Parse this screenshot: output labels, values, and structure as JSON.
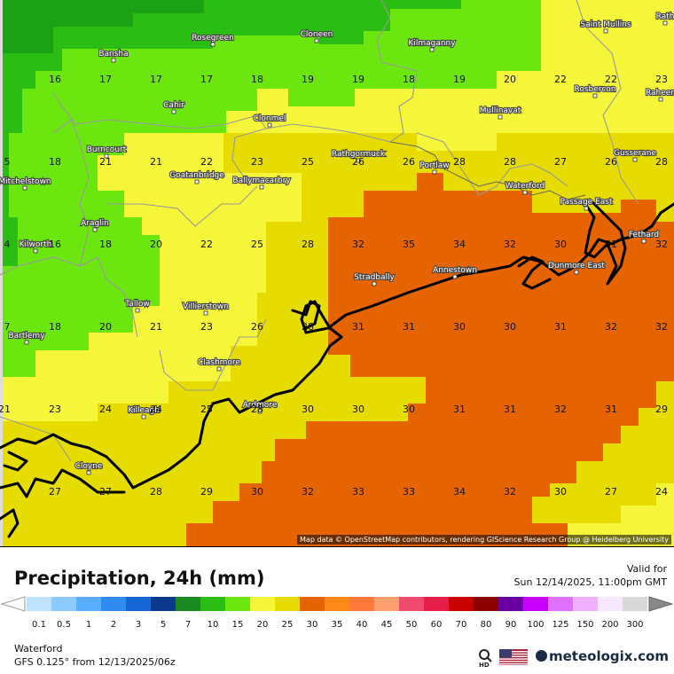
{
  "map": {
    "attribution": "Map data © OpenStreetMap contributors, rendering GIScience Research Group @ Heidelberg University",
    "places": [
      {
        "name": "Rosegreen",
        "id": "rosegreen"
      },
      {
        "name": "Cloneen",
        "id": "cloneen"
      },
      {
        "name": "Kilmaganny",
        "id": "kilmaganny"
      },
      {
        "name": "Saint Mullins",
        "id": "saint-mullins"
      },
      {
        "name": "Rath",
        "id": "rath"
      },
      {
        "name": "Bansha",
        "id": "bansha"
      },
      {
        "name": "Rosbercon",
        "id": "rosbercon"
      },
      {
        "name": "Raheen",
        "id": "raheen"
      },
      {
        "name": "Cahir",
        "id": "cahir"
      },
      {
        "name": "Mullinavat",
        "id": "mullinavat"
      },
      {
        "name": "Clonmel",
        "id": "clonmel"
      },
      {
        "name": "Burncourt",
        "id": "burncourt"
      },
      {
        "name": "Rathgormuck",
        "id": "rathgormuck"
      },
      {
        "name": "Gusserane",
        "id": "gusserane"
      },
      {
        "name": "Portlaw",
        "id": "portlaw"
      },
      {
        "name": "Goatanbridge",
        "id": "goatanbridge"
      },
      {
        "name": "Ballymacarbry",
        "id": "ballymacarbry"
      },
      {
        "name": "Mitchelstown",
        "id": "mitchelstown"
      },
      {
        "name": "Waterford",
        "id": "waterford"
      },
      {
        "name": "Passage East",
        "id": "passage-east"
      },
      {
        "name": "Araglin",
        "id": "araglin"
      },
      {
        "name": "Fethard",
        "id": "fethard"
      },
      {
        "name": "Kilworth",
        "id": "kilworth"
      },
      {
        "name": "Dunmore East",
        "id": "dunmore-east"
      },
      {
        "name": "Annestown",
        "id": "annestown"
      },
      {
        "name": "Stradbally",
        "id": "stradbally"
      },
      {
        "name": "Tallow",
        "id": "tallow"
      },
      {
        "name": "Villierstown",
        "id": "villierstown"
      },
      {
        "name": "Bartlemy",
        "id": "bartlemy"
      },
      {
        "name": "Clashmore",
        "id": "clashmore"
      },
      {
        "name": "Ardmore",
        "id": "ardmore"
      },
      {
        "name": "Killeagh",
        "id": "killeagh"
      },
      {
        "name": "Cloyne",
        "id": "cloyne"
      }
    ],
    "values": [
      {
        "v": "16"
      },
      {
        "v": "17"
      },
      {
        "v": "17"
      },
      {
        "v": "17"
      },
      {
        "v": "18"
      },
      {
        "v": "19"
      },
      {
        "v": "19"
      },
      {
        "v": "18"
      },
      {
        "v": "19"
      },
      {
        "v": "20"
      },
      {
        "v": "22"
      },
      {
        "v": "22"
      },
      {
        "v": "23"
      },
      {
        "v": "5"
      },
      {
        "v": "18"
      },
      {
        "v": "21"
      },
      {
        "v": "21"
      },
      {
        "v": "22"
      },
      {
        "v": "23"
      },
      {
        "v": "25"
      },
      {
        "v": "26"
      },
      {
        "v": "26"
      },
      {
        "v": "28"
      },
      {
        "v": "28"
      },
      {
        "v": "27"
      },
      {
        "v": "26"
      },
      {
        "v": "28"
      },
      {
        "v": "4"
      },
      {
        "v": "16"
      },
      {
        "v": "18"
      },
      {
        "v": "20"
      },
      {
        "v": "22"
      },
      {
        "v": "25"
      },
      {
        "v": "28"
      },
      {
        "v": "32"
      },
      {
        "v": "35"
      },
      {
        "v": "34"
      },
      {
        "v": "32"
      },
      {
        "v": "30"
      },
      {
        "v": "31"
      },
      {
        "v": "32"
      },
      {
        "v": "7"
      },
      {
        "v": "18"
      },
      {
        "v": "20"
      },
      {
        "v": "21"
      },
      {
        "v": "23"
      },
      {
        "v": "26"
      },
      {
        "v": "28"
      },
      {
        "v": "31"
      },
      {
        "v": "31"
      },
      {
        "v": "30"
      },
      {
        "v": "30"
      },
      {
        "v": "31"
      },
      {
        "v": "32"
      },
      {
        "v": "32"
      },
      {
        "v": "21"
      },
      {
        "v": "23"
      },
      {
        "v": "24"
      },
      {
        "v": "24"
      },
      {
        "v": "25"
      },
      {
        "v": "28"
      },
      {
        "v": "30"
      },
      {
        "v": "30"
      },
      {
        "v": "30"
      },
      {
        "v": "31"
      },
      {
        "v": "31"
      },
      {
        "v": "32"
      },
      {
        "v": "31"
      },
      {
        "v": "29"
      },
      {
        "v": "27"
      },
      {
        "v": "27"
      },
      {
        "v": "28"
      },
      {
        "v": "29"
      },
      {
        "v": "30"
      },
      {
        "v": "32"
      },
      {
        "v": "33"
      },
      {
        "v": "33"
      },
      {
        "v": "34"
      },
      {
        "v": "32"
      },
      {
        "v": "30"
      },
      {
        "v": "27"
      },
      {
        "v": "24"
      }
    ]
  },
  "header": {
    "title": "Precipitation, 24h (mm)",
    "valid_label": "Valid for",
    "valid_time": "Sun 12/14/2025, 11:00pm GMT"
  },
  "legend": {
    "steps": [
      {
        "label": "0.1",
        "color": "#bfe3ff"
      },
      {
        "label": "0.5",
        "color": "#8ccaff"
      },
      {
        "label": "1",
        "color": "#5aaeff"
      },
      {
        "label": "2",
        "color": "#2e8cf0"
      },
      {
        "label": "3",
        "color": "#1466d4"
      },
      {
        "label": "5",
        "color": "#0b3a8c"
      },
      {
        "label": "7",
        "color": "#1a8a20"
      },
      {
        "label": "10",
        "color": "#2bbd14"
      },
      {
        "label": "15",
        "color": "#6be60e"
      },
      {
        "label": "20",
        "color": "#f5f53a"
      },
      {
        "label": "25",
        "color": "#e6dc00"
      },
      {
        "label": "30",
        "color": "#e66400"
      },
      {
        "label": "35",
        "color": "#ff8a1a"
      },
      {
        "label": "40",
        "color": "#ff7a3a"
      },
      {
        "label": "45",
        "color": "#ffa070"
      },
      {
        "label": "50",
        "color": "#f04a6e"
      },
      {
        "label": "60",
        "color": "#e81e4a"
      },
      {
        "label": "70",
        "color": "#c80000"
      },
      {
        "label": "80",
        "color": "#8a0000"
      },
      {
        "label": "90",
        "color": "#6a00a0"
      },
      {
        "label": "100",
        "color": "#c800ff"
      },
      {
        "label": "125",
        "color": "#e070ff"
      },
      {
        "label": "150",
        "color": "#f0b0ff"
      },
      {
        "label": "200",
        "color": "#f8e8ff"
      },
      {
        "label": "300",
        "color": "#d8d8d8"
      }
    ]
  },
  "footer": {
    "location": "Waterford",
    "model": "GFS 0.125° from  12/13/2025/06z",
    "hd_icon": "magnifier-hd-icon",
    "flag_icon": "us-flag-icon",
    "brand": "meteologix.com"
  }
}
